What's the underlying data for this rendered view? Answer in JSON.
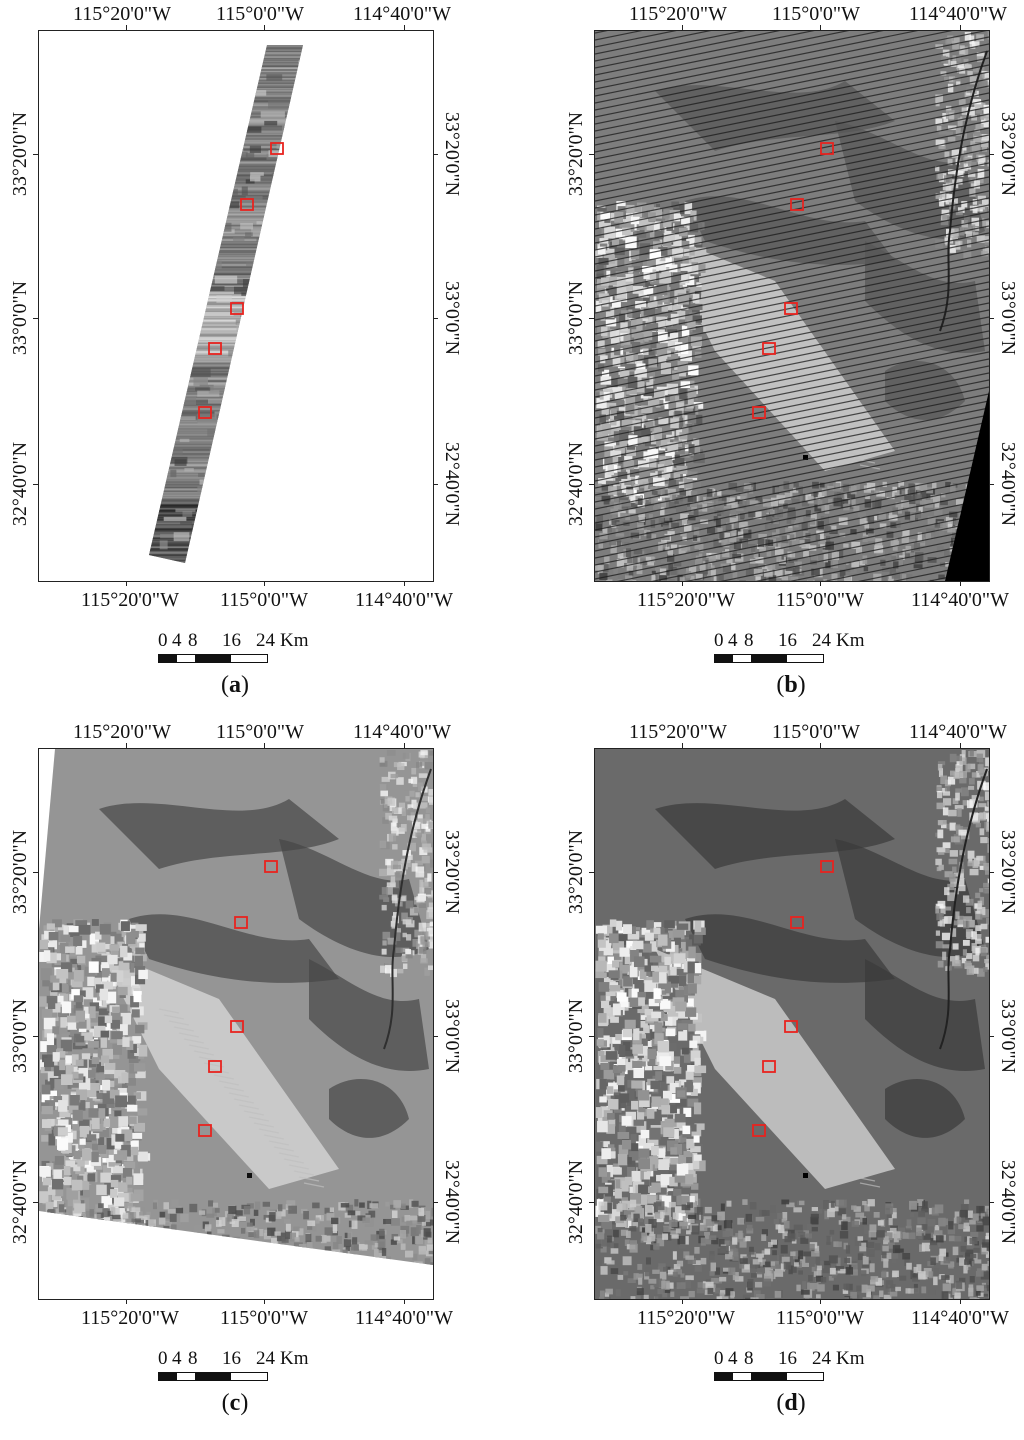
{
  "panels": [
    {
      "id": "a",
      "label": "(a)",
      "letter": "a"
    },
    {
      "id": "b",
      "label": "(b)",
      "letter": "b"
    },
    {
      "id": "c",
      "label": "(c)",
      "letter": "c"
    },
    {
      "id": "d",
      "label": "(d)",
      "letter": "d"
    }
  ],
  "graticule": {
    "lon_labels": [
      "115°20'0\"W",
      "115°0'0\"W",
      "114°40'0\"W"
    ],
    "lat_labels": [
      "33°20'0\"N",
      "33°0'0\"N",
      "32°40'0\"N"
    ]
  },
  "scale_bar": {
    "ticks": [
      "0",
      "4",
      "8",
      "16",
      "24"
    ],
    "unit": "Km"
  },
  "colors": {
    "roi_box": "#e8231f",
    "frame": "#222222",
    "nodata": "#000000"
  },
  "roi_count": 5
}
